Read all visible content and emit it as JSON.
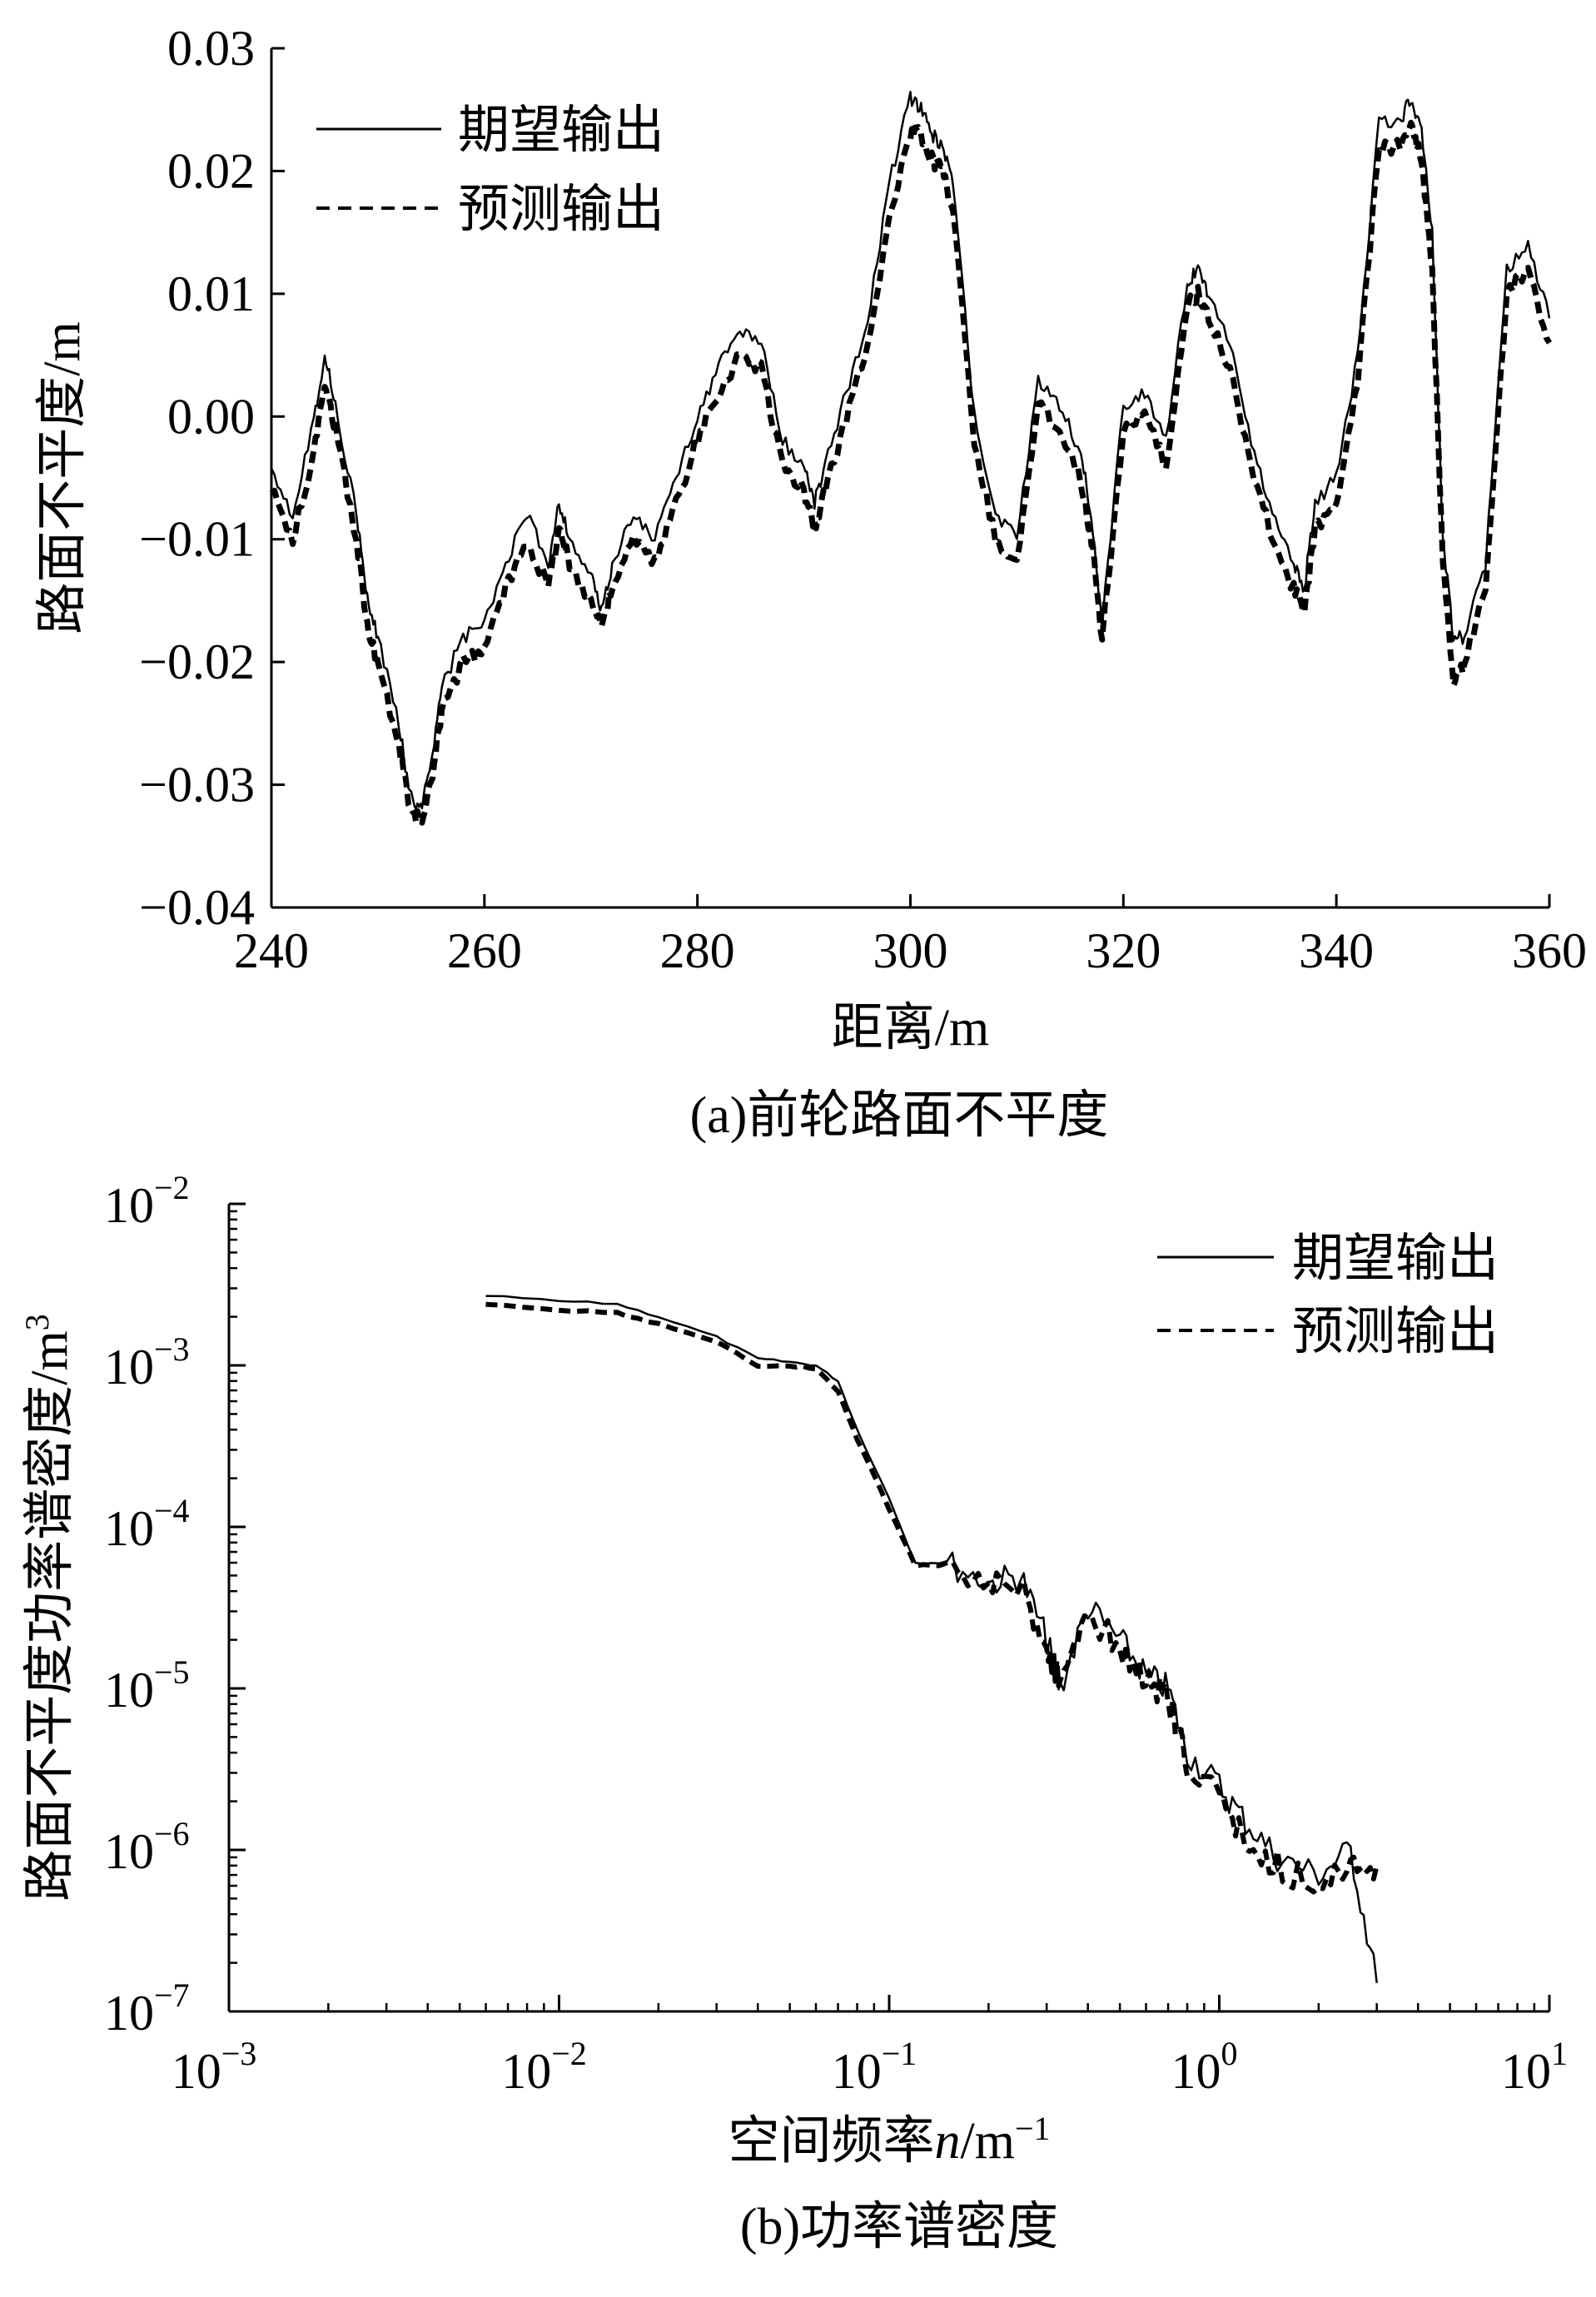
{
  "chart_data": [
    {
      "type": "line",
      "caption": "(a)前轮路面不平度",
      "xlabel": "距离/m",
      "ylabel": "路面不平度/m",
      "xlim": [
        240,
        360
      ],
      "ylim": [
        -0.04,
        0.03
      ],
      "x_ticks": [
        240,
        260,
        280,
        300,
        320,
        340,
        360
      ],
      "y_ticks": [
        0.03,
        0.02,
        0.01,
        0.0,
        -0.01,
        -0.02,
        -0.03,
        -0.04
      ],
      "x_tick_labels": [
        "240",
        "260",
        "280",
        "300",
        "320",
        "340",
        "360"
      ],
      "y_tick_labels": [
        "0.03",
        "0.02",
        "0.01",
        "0.00",
        "−0.01",
        "−0.02",
        "−0.03",
        "−0.04"
      ],
      "grid": false,
      "legend_position": "top-left",
      "series": [
        {
          "name": "期望输出",
          "style": "solid",
          "x": [
            240,
            242,
            244,
            245,
            246,
            248,
            249,
            250,
            252,
            253,
            254,
            255,
            256,
            258,
            260,
            262,
            264,
            266,
            267,
            268,
            270,
            271,
            272,
            274,
            276,
            278,
            280,
            282,
            284,
            286,
            288,
            290,
            291,
            292,
            294,
            296,
            298,
            300,
            301,
            302,
            303,
            304,
            306,
            308,
            310,
            312,
            314,
            316,
            317,
            318,
            320,
            322,
            324,
            326,
            327,
            328,
            330,
            332,
            334,
            336,
            337,
            338,
            340,
            342,
            344,
            346,
            347,
            348,
            349,
            350,
            351,
            352,
            354,
            356,
            358,
            360
          ],
          "y": [
            -0.004,
            -0.008,
            0.0,
            0.005,
            0.001,
            -0.008,
            -0.015,
            -0.018,
            -0.025,
            -0.031,
            -0.032,
            -0.028,
            -0.022,
            -0.018,
            -0.017,
            -0.012,
            -0.008,
            -0.012,
            -0.007,
            -0.01,
            -0.013,
            -0.016,
            -0.012,
            -0.008,
            -0.01,
            -0.005,
            0.0,
            0.004,
            0.007,
            0.006,
            -0.002,
            -0.004,
            -0.007,
            -0.004,
            0.002,
            0.008,
            0.019,
            0.026,
            0.025,
            0.023,
            0.022,
            0.019,
            0.0,
            -0.008,
            -0.01,
            0.003,
            0.001,
            -0.003,
            -0.008,
            -0.017,
            0.001,
            0.002,
            -0.002,
            0.011,
            0.012,
            0.01,
            0.006,
            -0.002,
            -0.008,
            -0.012,
            -0.014,
            -0.007,
            -0.005,
            0.005,
            0.024,
            0.024,
            0.026,
            0.023,
            0.015,
            -0.01,
            -0.018,
            -0.018,
            -0.012,
            0.012,
            0.014,
            0.008
          ]
        },
        {
          "name": "预测输出",
          "style": "dashed",
          "x": [
            240,
            242,
            244,
            245,
            246,
            248,
            249,
            250,
            252,
            253,
            254,
            255,
            256,
            258,
            260,
            262,
            264,
            266,
            267,
            268,
            270,
            271,
            272,
            274,
            276,
            278,
            280,
            282,
            284,
            286,
            288,
            290,
            291,
            292,
            294,
            296,
            298,
            300,
            301,
            302,
            303,
            304,
            306,
            308,
            310,
            312,
            314,
            316,
            317,
            318,
            320,
            322,
            324,
            326,
            327,
            328,
            330,
            332,
            334,
            336,
            337,
            338,
            340,
            342,
            344,
            346,
            347,
            348,
            349,
            350,
            351,
            352,
            354,
            356,
            358,
            360
          ],
          "y": [
            -0.006,
            -0.01,
            -0.003,
            0.003,
            -0.001,
            -0.01,
            -0.017,
            -0.02,
            -0.027,
            -0.032,
            -0.033,
            -0.03,
            -0.024,
            -0.02,
            -0.019,
            -0.014,
            -0.01,
            -0.014,
            -0.009,
            -0.012,
            -0.015,
            -0.017,
            -0.014,
            -0.01,
            -0.012,
            -0.007,
            -0.002,
            0.002,
            0.005,
            0.004,
            -0.004,
            -0.006,
            -0.009,
            -0.006,
            0.0,
            0.006,
            0.016,
            0.023,
            0.023,
            0.021,
            0.02,
            0.017,
            -0.002,
            -0.01,
            -0.012,
            0.001,
            -0.001,
            -0.005,
            -0.01,
            -0.018,
            -0.001,
            0.0,
            -0.004,
            0.009,
            0.01,
            0.008,
            0.004,
            -0.004,
            -0.01,
            -0.014,
            -0.016,
            -0.009,
            -0.007,
            0.003,
            0.022,
            0.022,
            0.024,
            0.021,
            0.012,
            -0.012,
            -0.022,
            -0.02,
            -0.014,
            0.01,
            0.012,
            0.006
          ]
        }
      ]
    },
    {
      "type": "line",
      "caption": "(b)功率谱密度",
      "xlabel": "空间频率n/m⁻¹",
      "xlabel_parts": {
        "main": "空间频率",
        "italic": "n",
        "unit": "/m",
        "sup": "−1"
      },
      "ylabel": "路面不平度功率谱密度/m³",
      "ylabel_parts": {
        "main": "路面不平度功率谱密度/m",
        "sup": "3"
      },
      "x_scale": "log",
      "y_scale": "log",
      "xlim": [
        0.001,
        10
      ],
      "ylim": [
        1e-07,
        0.01
      ],
      "x_ticks": [
        0.001,
        0.01,
        0.1,
        1,
        10
      ],
      "y_ticks": [
        0.01,
        0.001,
        0.0001,
        1e-05,
        1e-06,
        1e-07
      ],
      "x_tick_labels": [
        {
          "base": "10",
          "exp": "−3"
        },
        {
          "base": "10",
          "exp": "−2"
        },
        {
          "base": "10",
          "exp": "−1"
        },
        {
          "base": "10",
          "exp": "0"
        },
        {
          "base": "10",
          "exp": "1"
        }
      ],
      "y_tick_labels": [
        {
          "base": "10",
          "exp": "−2"
        },
        {
          "base": "10",
          "exp": "−3"
        },
        {
          "base": "10",
          "exp": "−4"
        },
        {
          "base": "10",
          "exp": "−5"
        },
        {
          "base": "10",
          "exp": "−6"
        },
        {
          "base": "10",
          "exp": "−7"
        }
      ],
      "grid": false,
      "legend_position": "top-right",
      "series": [
        {
          "name": "期望输出",
          "style": "solid",
          "x": [
            0.006,
            0.01,
            0.015,
            0.02,
            0.03,
            0.04,
            0.05,
            0.06,
            0.07,
            0.08,
            0.1,
            0.12,
            0.15,
            0.2,
            0.25,
            0.3,
            0.33,
            0.4,
            0.5,
            0.6,
            0.7,
            0.8,
            1.0,
            1.2,
            1.5,
            2.0,
            2.5,
            3.0
          ],
          "y": [
            0.0027,
            0.0025,
            0.0024,
            0.002,
            0.0015,
            0.0011,
            0.00105,
            0.001,
            0.0008,
            0.0004,
            0.00015,
            6e-05,
            6e-05,
            4.5e-05,
            5e-05,
            2e-05,
            1e-05,
            3.2e-05,
            2e-05,
            1.2e-05,
            1e-05,
            4e-06,
            2.5e-06,
            1.5e-06,
            9e-07,
            7e-07,
            1e-06,
            1.5e-07
          ]
        },
        {
          "name": "预测输出",
          "style": "dashed",
          "x": [
            0.006,
            0.01,
            0.015,
            0.02,
            0.03,
            0.04,
            0.05,
            0.06,
            0.07,
            0.08,
            0.1,
            0.12,
            0.15,
            0.2,
            0.25,
            0.3,
            0.33,
            0.4,
            0.5,
            0.6,
            0.7,
            0.8,
            1.0,
            1.2,
            1.5,
            2.0,
            2.5,
            3.0
          ],
          "y": [
            0.0024,
            0.0022,
            0.0021,
            0.0018,
            0.0014,
            0.001,
            0.001,
            0.00095,
            0.0007,
            0.00035,
            0.00013,
            5.8e-05,
            5.8e-05,
            4.2e-05,
            4.5e-05,
            1.8e-05,
            1.1e-05,
            3e-05,
            1.8e-05,
            1.1e-05,
            9e-06,
            3.5e-06,
            2e-06,
            1.2e-06,
            8e-07,
            6e-07,
            9e-07,
            8e-07
          ]
        }
      ]
    }
  ]
}
